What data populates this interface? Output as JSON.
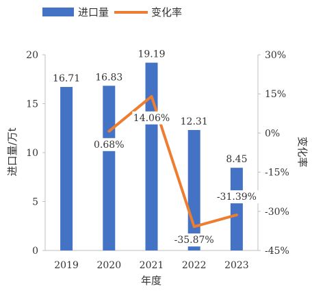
{
  "chart_data": {
    "type": "bar",
    "categories": [
      "2019",
      "2020",
      "2021",
      "2022",
      "2023"
    ],
    "series": [
      {
        "name": "进口量",
        "type": "bar",
        "axis": "left",
        "color": "#4472C4",
        "values": [
          16.71,
          16.83,
          19.19,
          12.31,
          8.45
        ],
        "labels": [
          "16.71",
          "16.83",
          "19.19",
          "12.31",
          "8.45"
        ]
      },
      {
        "name": "变化率",
        "type": "line",
        "axis": "right",
        "color": "#ED7D31",
        "values": [
          null,
          0.68,
          14.06,
          -35.87,
          -31.39
        ],
        "labels": [
          "",
          "0.68%",
          "14.06%",
          "-35.87%",
          "-31.39%"
        ]
      }
    ],
    "xlabel": "年度",
    "ylabel": "进口量/万t",
    "y2label": "变化率",
    "ylim": [
      0,
      20
    ],
    "y2lim": [
      -45,
      30
    ],
    "yticks": [
      "0",
      "5",
      "10",
      "15",
      "20"
    ],
    "y2ticks": [
      "-45%",
      "-30%",
      "-15%",
      "0%",
      "15%",
      "30%"
    ],
    "grid": false,
    "legend_position": "top-left"
  }
}
